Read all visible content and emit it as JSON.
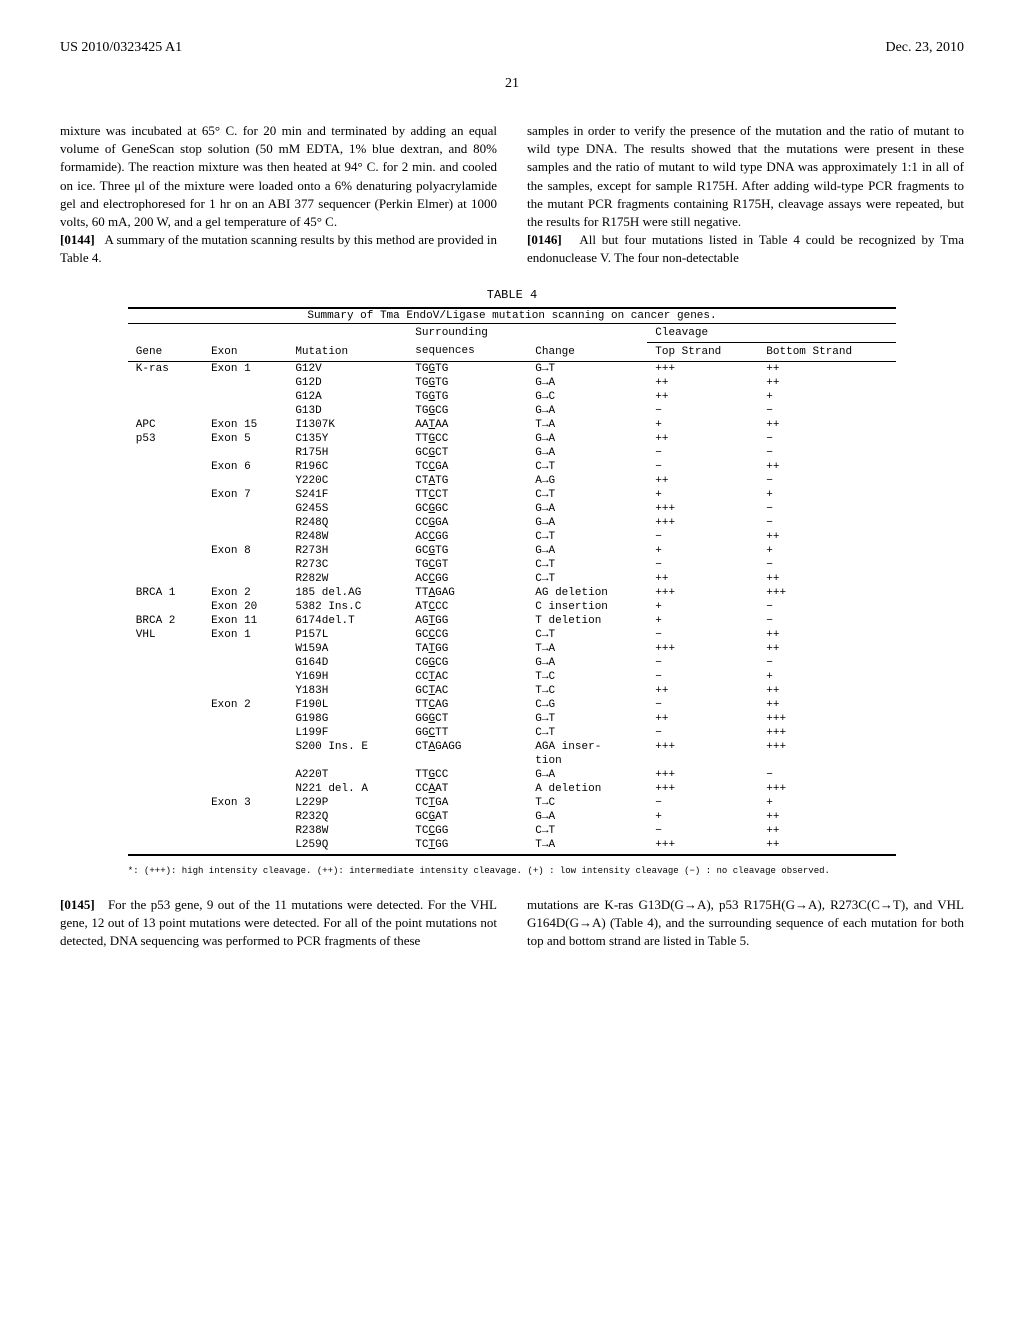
{
  "header": {
    "left": "US 2010/0323425 A1",
    "right": "Dec. 23, 2010"
  },
  "page_number": "21",
  "col_left": {
    "p1": "mixture was incubated at 65° C. for 20 min and terminated by adding an equal volume of GeneScan stop solution (50 mM EDTA, 1% blue dextran, and 80% formamide). The reaction mixture was then heated at 94° C. for 2 min. and cooled on ice. Three μl of the mixture were loaded onto a 6% denaturing polyacrylamide gel and electrophoresed for 1 hr on an ABI 377 sequencer (Perkin Elmer) at 1000 volts, 60 mA, 200 W, and a gel temperature of 45° C.",
    "p2_num": "[0144]",
    "p2": "A summary of the mutation scanning results by this method are provided in Table 4."
  },
  "col_right": {
    "p1": "samples in order to verify the presence of the mutation and the ratio of mutant to wild type DNA. The results showed that the mutations were present in these samples and the ratio of mutant to wild type DNA was approximately 1:1 in all of the samples, except for sample R175H. After adding wild-type PCR fragments to the mutant PCR fragments containing R175H, cleavage assays were repeated, but the results for R175H were still negative.",
    "p2_num": "[0146]",
    "p2": "All but four mutations listed in Table 4 could be recognized by Tma endonuclease V. The four non-detectable"
  },
  "table": {
    "title": "TABLE 4",
    "caption": "Summary of Tma EndoV/Ligase mutation scanning on cancer genes.",
    "headers": {
      "gene": "Gene",
      "exon": "Exon",
      "mutation": "Mutation",
      "surrounding": "Surrounding",
      "sequences": "sequences",
      "change": "Change",
      "cleavage": "Cleavage",
      "top": "Top Strand",
      "bottom": "Bottom Strand"
    },
    "rows": [
      {
        "gene": "K-ras",
        "exon": "Exon 1",
        "mut": "G12V",
        "seq": "TGGTG",
        "change": "G→T",
        "top": "+++",
        "bot": "++"
      },
      {
        "gene": "",
        "exon": "",
        "mut": "G12D",
        "seq": "TGGTG",
        "change": "G→A",
        "top": "++",
        "bot": "++"
      },
      {
        "gene": "",
        "exon": "",
        "mut": "G12A",
        "seq": "TGGTG",
        "change": "G→C",
        "top": "++",
        "bot": "+"
      },
      {
        "gene": "",
        "exon": "",
        "mut": "G13D",
        "seq": "TGGCG",
        "change": "G→A",
        "top": "−",
        "bot": "−"
      },
      {
        "gene": "APC",
        "exon": "Exon 15",
        "mut": "I1307K",
        "seq": "AATAA",
        "change": "T→A",
        "top": "+",
        "bot": "++",
        "gap": true
      },
      {
        "gene": "p53",
        "exon": "Exon 5",
        "mut": "C135Y",
        "seq": "TTGCC",
        "change": "G→A",
        "top": "++",
        "bot": "−",
        "gap": true
      },
      {
        "gene": "",
        "exon": "",
        "mut": "R175H",
        "seq": "GCGCT",
        "change": "G→A",
        "top": "−",
        "bot": "−"
      },
      {
        "gene": "",
        "exon": "Exon 6",
        "mut": "R196C",
        "seq": "TCCGA",
        "change": "C→T",
        "top": "−",
        "bot": "++"
      },
      {
        "gene": "",
        "exon": "",
        "mut": "Y220C",
        "seq": "CTATG",
        "change": "A→G",
        "top": "++",
        "bot": "−"
      },
      {
        "gene": "",
        "exon": "Exon 7",
        "mut": "S241F",
        "seq": "TTCCT",
        "change": "C→T",
        "top": "+",
        "bot": "+"
      },
      {
        "gene": "",
        "exon": "",
        "mut": "G245S",
        "seq": "GCGGC",
        "change": "G→A",
        "top": "+++",
        "bot": "−"
      },
      {
        "gene": "",
        "exon": "",
        "mut": "R248Q",
        "seq": "CCGGA",
        "change": "G→A",
        "top": "+++",
        "bot": "−"
      },
      {
        "gene": "",
        "exon": "",
        "mut": "R248W",
        "seq": "ACCGG",
        "change": "C→T",
        "top": "−",
        "bot": "++"
      },
      {
        "gene": "",
        "exon": "Exon 8",
        "mut": "R273H",
        "seq": "GCGTG",
        "change": "G→A",
        "top": "+",
        "bot": "+"
      },
      {
        "gene": "",
        "exon": "",
        "mut": "R273C",
        "seq": "TGCGT",
        "change": "C→T",
        "top": "−",
        "bot": "−"
      },
      {
        "gene": "",
        "exon": "",
        "mut": "R282W",
        "seq": "ACCGG",
        "change": "C→T",
        "top": "++",
        "bot": "++"
      },
      {
        "gene": "BRCA 1",
        "exon": "Exon 2",
        "mut": "185 del.AG",
        "seq": "TTAGAG",
        "change": "AG deletion",
        "top": "+++",
        "bot": "+++",
        "gap": true
      },
      {
        "gene": "",
        "exon": "Exon 20",
        "mut": "5382 Ins.C",
        "seq": "ATCCC",
        "change": "C insertion",
        "top": "+",
        "bot": "−"
      },
      {
        "gene": "BRCA 2",
        "exon": "Exon 11",
        "mut": "6174del.T",
        "seq": "AGTGG",
        "change": "T deletion",
        "top": "+",
        "bot": "−",
        "gap": true
      },
      {
        "gene": "VHL",
        "exon": "Exon 1",
        "mut": "P157L",
        "seq": "GCCCG",
        "change": "C→T",
        "top": "−",
        "bot": "++",
        "gap": true
      },
      {
        "gene": "",
        "exon": "",
        "mut": "W159A",
        "seq": "TATGG",
        "change": "T→A",
        "top": "+++",
        "bot": "++"
      },
      {
        "gene": "",
        "exon": "",
        "mut": "G164D",
        "seq": "CGGCG",
        "change": "G→A",
        "top": "−",
        "bot": "−"
      },
      {
        "gene": "",
        "exon": "",
        "mut": "Y169H",
        "seq": "CCTAC",
        "change": "T→C",
        "top": "−",
        "bot": "+"
      },
      {
        "gene": "",
        "exon": "",
        "mut": "Y183H",
        "seq": "GCTAC",
        "change": "T→C",
        "top": "++",
        "bot": "++"
      },
      {
        "gene": "",
        "exon": "Exon 2",
        "mut": "F190L",
        "seq": "TTCAG",
        "change": "C→G",
        "top": "−",
        "bot": "++"
      },
      {
        "gene": "",
        "exon": "",
        "mut": "G198G",
        "seq": "GGGCT",
        "change": "G→T",
        "top": "++",
        "bot": "+++"
      },
      {
        "gene": "",
        "exon": "",
        "mut": "L199F",
        "seq": "GGCTT",
        "change": "C→T",
        "top": "−",
        "bot": "+++"
      },
      {
        "gene": "",
        "exon": "",
        "mut": "S200 Ins. E",
        "seq": "CTAGAGG",
        "change": "AGA inser-",
        "top": "+++",
        "bot": "+++"
      },
      {
        "gene": "",
        "exon": "",
        "mut": "",
        "seq": "",
        "change": "tion",
        "top": "",
        "bot": ""
      },
      {
        "gene": "",
        "exon": "",
        "mut": "A220T",
        "seq": "TTGCC",
        "change": "G→A",
        "top": "+++",
        "bot": "−"
      },
      {
        "gene": "",
        "exon": "",
        "mut": "N221 del. A",
        "seq": "CCAAT",
        "change": "A deletion",
        "top": "+++",
        "bot": "+++"
      },
      {
        "gene": "",
        "exon": "Exon 3",
        "mut": "L229P",
        "seq": "TCTGA",
        "change": "T→C",
        "top": "−",
        "bot": "+"
      },
      {
        "gene": "",
        "exon": "",
        "mut": "R232Q",
        "seq": "GCGAT",
        "change": "G→A",
        "top": "+",
        "bot": "++"
      },
      {
        "gene": "",
        "exon": "",
        "mut": "R238W",
        "seq": "TCCGG",
        "change": "C→T",
        "top": "−",
        "bot": "++"
      },
      {
        "gene": "",
        "exon": "",
        "mut": "L259Q",
        "seq": "TCTGG",
        "change": "T→A",
        "top": "+++",
        "bot": "++"
      }
    ]
  },
  "footnote": "*: (+++): high intensity cleavage. (++): intermediate intensity cleavage. (+) : low intensity cleavage (−) : no cleavage observed.",
  "bottom": {
    "left_num": "[0145]",
    "left": "For the p53 gene, 9 out of the 11 mutations were detected. For the VHL gene, 12 out of 13 point mutations were detected. For all of the point mutations not detected, DNA sequencing was performed to PCR fragments of these",
    "right": "mutations are K-ras G13D(G→A), p53 R175H(G→A), R273C(C→T), and VHL G164D(G→A) (Table 4), and the surrounding sequence of each mutation for both top and bottom strand are listed in Table 5."
  }
}
